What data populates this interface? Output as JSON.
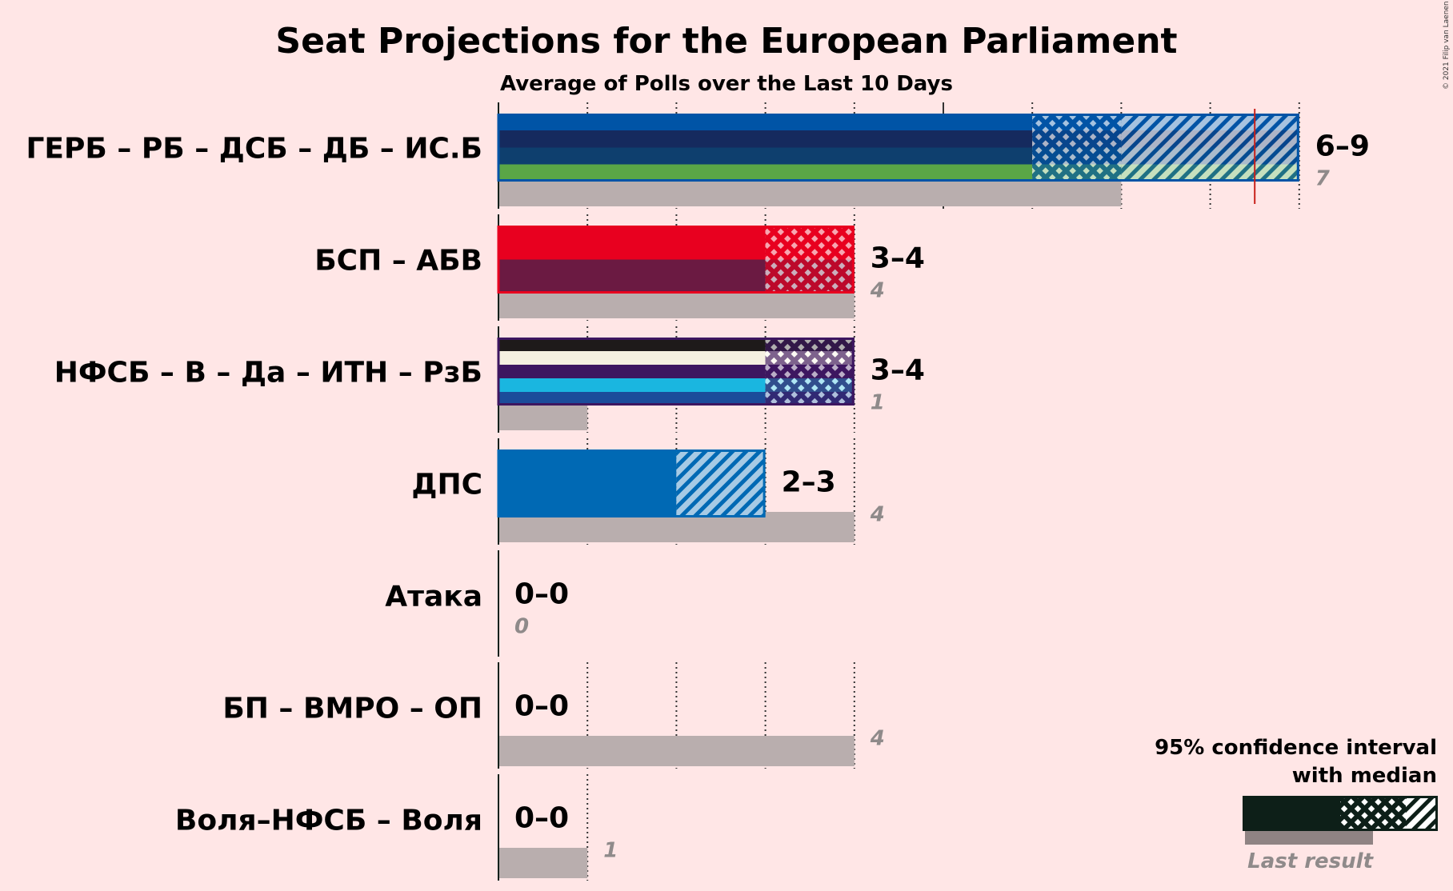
{
  "chart_data": {
    "type": "bar",
    "title": "Seat Projections for the European Parliament",
    "subtitle": "Average of Polls over the Last 10 Days",
    "copyright": "© 2021 Filip van Laenen",
    "xlim": [
      0,
      9
    ],
    "majority_line": 8.5,
    "parties": [
      {
        "name": "ГЕРБ – РБ – ДСБ – ДБ – ИС.Б",
        "range_label": "6–9",
        "low": 6,
        "median": 7,
        "high": 9,
        "last": 7,
        "last_label": "7",
        "colors": [
          "#0054A6",
          "#152A5E",
          "#0E3F6E",
          "#5AA646"
        ],
        "color_hex": "#0054A6"
      },
      {
        "name": "БСП – АБВ",
        "range_label": "3–4",
        "low": 3,
        "median": 4,
        "high": 4,
        "last": 4,
        "last_label": "4",
        "colors": [
          "#E8001F",
          "#6B1A42"
        ],
        "color_hex": "#E8001F"
      },
      {
        "name": "НФСБ – В – Да – ИТН – РзБ",
        "range_label": "3–4",
        "low": 3,
        "median": 4,
        "high": 4,
        "last": 1,
        "last_label": "1",
        "colors": [
          "#1E1A1A",
          "#F5F0E0",
          "#3D1660",
          "#1AB6E0",
          "#1B4C9A"
        ],
        "color_hex": "#3D1660"
      },
      {
        "name": "ДПС",
        "range_label": "2–3",
        "low": 2,
        "median": 2,
        "high": 3,
        "last": 4,
        "last_label": "4",
        "colors": [
          "#0069B4"
        ],
        "color_hex": "#0069B4"
      },
      {
        "name": "Атака",
        "range_label": "0–0",
        "low": 0,
        "median": 0,
        "high": 0,
        "last": 0,
        "last_label": "0",
        "colors": [
          "#2b2b2b"
        ],
        "color_hex": "#2b2b2b"
      },
      {
        "name": "БП – ВМРО – ОП",
        "range_label": "0–0",
        "low": 0,
        "median": 0,
        "high": 0,
        "last": 4,
        "last_label": "4",
        "colors": [
          "#2b2b2b"
        ],
        "color_hex": "#2b2b2b"
      },
      {
        "name": "Воля–НФСБ – Воля",
        "range_label": "0–0",
        "low": 0,
        "median": 0,
        "high": 0,
        "last": 1,
        "last_label": "1",
        "colors": [
          "#2b2b2b"
        ],
        "color_hex": "#2b2b2b"
      }
    ],
    "legend": {
      "line1": "95% confidence interval",
      "line2": "with median",
      "last_result": "Last result",
      "dark_color": "#0D1F18"
    }
  }
}
